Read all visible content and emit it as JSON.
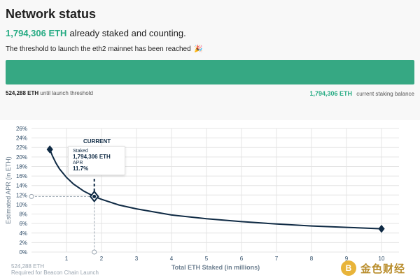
{
  "header": {
    "title": "Network status",
    "staked_amount": "1,794,306 ETH",
    "staked_suffix": "already staked and counting.",
    "threshold_message": "The threshold to launch the eth2 mainnet has been reached",
    "threshold_emoji": "🎉"
  },
  "progress": {
    "fill_fraction": 1.0,
    "left_value": "524,288 ETH",
    "left_caption": "until launch threshold",
    "right_value": "1,794,306 ETH",
    "right_caption": "current staking balance",
    "fill_color": "#36a883"
  },
  "tooltip": {
    "current_label": "CURRENT",
    "staked_label": "Staked",
    "staked_value": "1,794,306 ETH",
    "apr_label": "APR",
    "apr_value": "11.7%"
  },
  "launch_marker": {
    "value": "524,288 ETH",
    "caption": "Required for Beacon Chain Launch"
  },
  "watermark": {
    "text": "金色财经",
    "logo_glyph": "B"
  },
  "colors": {
    "accent": "#26ab83",
    "curve": "#0f2a44",
    "grid": "#e4e4e4"
  },
  "chart_data": {
    "type": "line",
    "xlabel": "Total ETH Staked  (in millions)",
    "ylabel": "Estimated APR  (in ETH)",
    "x_ticks": [
      1,
      2,
      3,
      4,
      5,
      6,
      7,
      8,
      9,
      10
    ],
    "y_ticks": [
      "0%",
      "2%",
      "4%",
      "6%",
      "8%",
      "10%",
      "12%",
      "14%",
      "16%",
      "18%",
      "20%",
      "22%",
      "24%",
      "26%"
    ],
    "xlim": [
      0,
      10.5
    ],
    "ylim": [
      0,
      26
    ],
    "grid": true,
    "series": [
      {
        "values_x": [
          0.524288,
          0.6,
          0.7,
          0.8,
          1.0,
          1.2,
          1.5,
          1.794306,
          2,
          2.5,
          3,
          4,
          5,
          6,
          7,
          8,
          9,
          10
        ],
        "values_y": [
          21.6,
          20.2,
          18.7,
          17.5,
          15.7,
          14.3,
          12.8,
          11.7,
          11.1,
          9.9,
          9.1,
          7.8,
          7.0,
          6.4,
          5.9,
          5.5,
          5.2,
          4.9
        ]
      }
    ],
    "current_point": {
      "x": 1.794306,
      "y": 11.7
    },
    "launch_point": {
      "x": 0.524288,
      "y": 21.6
    },
    "end_point": {
      "x": 10,
      "y": 4.9
    }
  }
}
